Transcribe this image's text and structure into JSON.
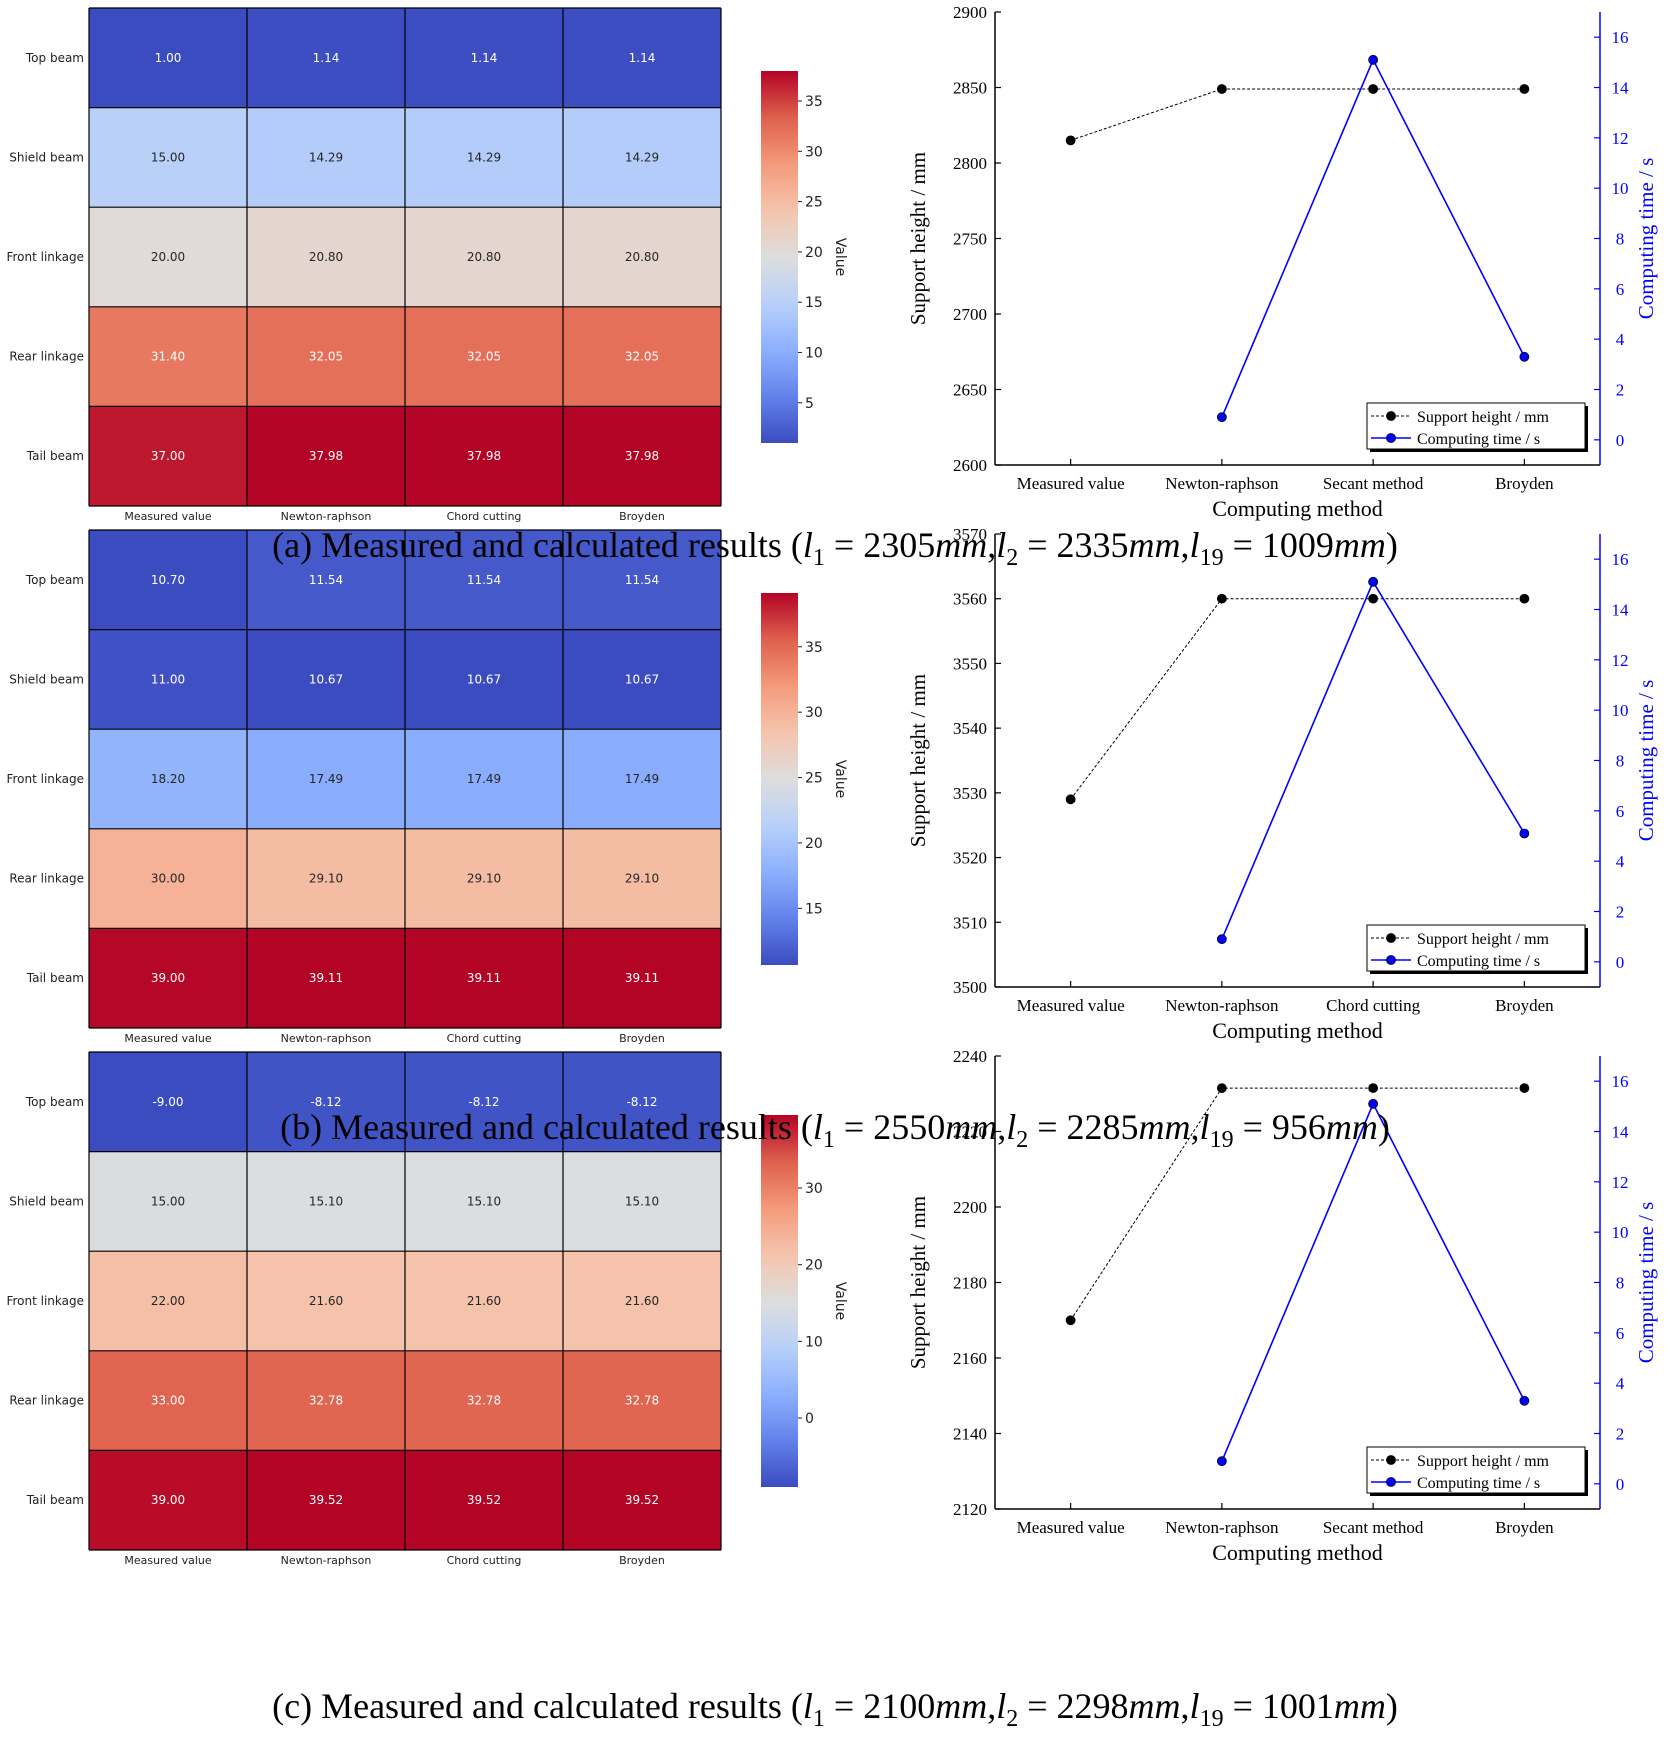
{
  "chart_data": [
    {
      "type": "heatmap",
      "panel": "a",
      "rows": [
        "Top beam",
        "Shield beam",
        "Front linkage",
        "Rear linkage",
        "Tail beam"
      ],
      "columns": [
        "Measured value",
        "Newton-raphson",
        "Chord cutting",
        "Broyden"
      ],
      "values": [
        [
          1.0,
          1.14,
          1.14,
          1.14
        ],
        [
          15.0,
          14.29,
          14.29,
          14.29
        ],
        [
          20.0,
          20.8,
          20.8,
          20.8
        ],
        [
          31.4,
          32.05,
          32.05,
          32.05
        ],
        [
          37.0,
          37.98,
          37.98,
          37.98
        ]
      ],
      "labels": [
        [
          "1.00",
          "1.14",
          "1.14",
          "1.14"
        ],
        [
          "15.00",
          "14.29",
          "14.29",
          "14.29"
        ],
        [
          "20.00",
          "20.80",
          "20.80",
          "20.80"
        ],
        [
          "31.40",
          "32.05",
          "32.05",
          "32.05"
        ],
        [
          "37.00",
          "37.98",
          "37.98",
          "37.98"
        ]
      ],
      "colorbar": {
        "label": "Value",
        "ticks": [
          5,
          10,
          15,
          20,
          25,
          30,
          35
        ],
        "range": [
          1.0,
          37.98
        ],
        "colormap": "coolwarm"
      }
    },
    {
      "type": "line",
      "panel": "a",
      "categories": [
        "Measured value",
        "Newton-raphson",
        "Secant method",
        "Broyden"
      ],
      "xlabel": "Computing method",
      "ylabel": "Support height / mm",
      "y2label": "Computing time / s",
      "ylim": [
        2600,
        2900
      ],
      "yticks": [
        2600,
        2650,
        2700,
        2750,
        2800,
        2850,
        2900
      ],
      "y2lim": [
        -1.0,
        17.0
      ],
      "y2ticks": [
        0,
        2,
        4,
        6,
        8,
        10,
        12,
        14,
        16
      ],
      "legend_position": "bottom-right",
      "series": [
        {
          "name": "Support height / mm",
          "axis": "left",
          "color": "#000000",
          "dashed": true,
          "values": [
            2815,
            2849,
            2849,
            2849
          ]
        },
        {
          "name": "Computing time / s",
          "axis": "right",
          "color": "#0000ff",
          "dashed": false,
          "values": [
            null,
            0.9,
            15.1,
            3.3
          ]
        }
      ]
    },
    {
      "type": "heatmap",
      "panel": "b",
      "rows": [
        "Top beam",
        "Shield beam",
        "Front linkage",
        "Rear linkage",
        "Tail beam"
      ],
      "columns": [
        "Measured value",
        "Newton-raphson",
        "Chord cutting",
        "Broyden"
      ],
      "values": [
        [
          10.7,
          11.54,
          11.54,
          11.54
        ],
        [
          11.0,
          10.67,
          10.67,
          10.67
        ],
        [
          18.2,
          17.49,
          17.49,
          17.49
        ],
        [
          30.0,
          29.1,
          29.1,
          29.1
        ],
        [
          39.0,
          39.11,
          39.11,
          39.11
        ]
      ],
      "labels": [
        [
          "10.70",
          "11.54",
          "11.54",
          "11.54"
        ],
        [
          "11.00",
          "10.67",
          "10.67",
          "10.67"
        ],
        [
          "18.20",
          "17.49",
          "17.49",
          "17.49"
        ],
        [
          "30.00",
          "29.10",
          "29.10",
          "29.10"
        ],
        [
          "39.00",
          "39.11",
          "39.11",
          "39.11"
        ]
      ],
      "colorbar": {
        "label": "Value",
        "ticks": [
          15,
          20,
          25,
          30,
          35
        ],
        "range": [
          10.67,
          39.11
        ],
        "colormap": "coolwarm"
      }
    },
    {
      "type": "line",
      "panel": "b",
      "categories": [
        "Measured value",
        "Newton-raphson",
        "Chord cutting",
        "Broyden"
      ],
      "xlabel": "Computing method",
      "ylabel": "Support height / mm",
      "y2label": "Computing time / s",
      "ylim": [
        3500,
        3570
      ],
      "yticks": [
        3500,
        3510,
        3520,
        3530,
        3540,
        3550,
        3560,
        3570
      ],
      "y2lim": [
        -1.0,
        17.0
      ],
      "y2ticks": [
        0,
        2,
        4,
        6,
        8,
        10,
        12,
        14,
        16
      ],
      "legend_position": "bottom-right",
      "series": [
        {
          "name": "Support height / mm",
          "axis": "left",
          "color": "#000000",
          "dashed": true,
          "values": [
            3529,
            3560,
            3560,
            3560
          ]
        },
        {
          "name": "Computing time / s",
          "axis": "right",
          "color": "#0000ff",
          "dashed": false,
          "values": [
            null,
            0.9,
            15.1,
            5.1
          ]
        }
      ]
    },
    {
      "type": "heatmap",
      "panel": "c",
      "rows": [
        "Top beam",
        "Shield beam",
        "Front linkage",
        "Rear linkage",
        "Tail beam"
      ],
      "columns": [
        "Measured value",
        "Newton-raphson",
        "Chord cutting",
        "Broyden"
      ],
      "values": [
        [
          -9.0,
          -8.12,
          -8.12,
          -8.12
        ],
        [
          15.0,
          15.1,
          15.1,
          15.1
        ],
        [
          22.0,
          21.6,
          21.6,
          21.6
        ],
        [
          33.0,
          32.78,
          32.78,
          32.78
        ],
        [
          39.0,
          39.52,
          39.52,
          39.52
        ]
      ],
      "labels": [
        [
          "-9.00",
          "-8.12",
          "-8.12",
          "-8.12"
        ],
        [
          "15.00",
          "15.10",
          "15.10",
          "15.10"
        ],
        [
          "22.00",
          "21.60",
          "21.60",
          "21.60"
        ],
        [
          "33.00",
          "32.78",
          "32.78",
          "32.78"
        ],
        [
          "39.00",
          "39.52",
          "39.52",
          "39.52"
        ]
      ],
      "colorbar": {
        "label": "Value",
        "ticks": [
          0,
          10,
          20,
          30
        ],
        "range": [
          -9.0,
          39.52
        ],
        "colormap": "coolwarm"
      }
    },
    {
      "type": "line",
      "panel": "c",
      "categories": [
        "Measured value",
        "Newton-raphson",
        "Secant method",
        "Broyden"
      ],
      "xlabel": "Computing method",
      "ylabel": "Support height / mm",
      "y2label": "Computing time / s",
      "ylim": [
        2120,
        2240
      ],
      "yticks": [
        2120,
        2140,
        2160,
        2180,
        2200,
        2220,
        2240
      ],
      "y2lim": [
        -1.0,
        17.0
      ],
      "y2ticks": [
        0,
        2,
        4,
        6,
        8,
        10,
        12,
        14,
        16
      ],
      "legend_position": "bottom-right",
      "series": [
        {
          "name": "Support height / mm",
          "axis": "left",
          "color": "#000000",
          "dashed": true,
          "values": [
            2170,
            2231.5,
            2231.5,
            2231.5
          ]
        },
        {
          "name": "Computing time / s",
          "axis": "right",
          "color": "#0000ff",
          "dashed": false,
          "values": [
            null,
            0.9,
            15.1,
            3.3
          ]
        }
      ]
    }
  ],
  "captions": [
    {
      "prefix": "(a) Measured and calculated results (",
      "l1": "2305",
      "l2": "2335",
      "l19": "1009",
      "unit": "mm",
      "suffix": ")"
    },
    {
      "prefix": "(b) Measured and calculated results (",
      "l1": "2550",
      "l2": "2285",
      "l19": "956",
      "unit": "mm",
      "suffix": ")"
    },
    {
      "prefix": "(c) Measured and calculated results (",
      "l1": "2100",
      "l2": "2298",
      "l19": "1001",
      "unit": "mm",
      "suffix": ")"
    }
  ]
}
